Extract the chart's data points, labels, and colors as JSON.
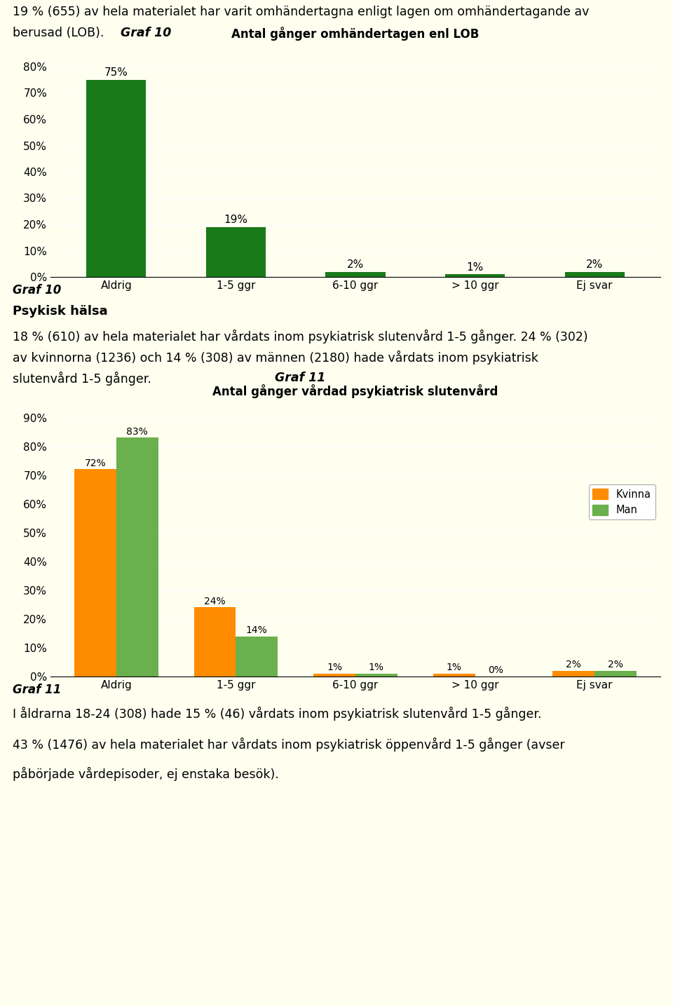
{
  "page_bg": "#fffff0",
  "chart1_title": "Antal gånger omhändertagen enl LOB",
  "chart1_categories": [
    "Aldrig",
    "1-5 ggr",
    "6-10 ggr",
    "> 10 ggr",
    "Ej svar"
  ],
  "chart1_values": [
    75,
    19,
    2,
    1,
    2
  ],
  "chart1_color": "#1a7a1a",
  "chart1_ylim": [
    0,
    88
  ],
  "chart1_yticks": [
    0,
    10,
    20,
    30,
    40,
    50,
    60,
    70,
    80
  ],
  "chart2_title": "Antal gånger vårdad psykiatrisk slutenvård",
  "chart2_categories": [
    "Aldrig",
    "1-5 ggr",
    "6-10 ggr",
    "> 10 ggr",
    "Ej svar"
  ],
  "chart2_kvinna": [
    72,
    24,
    1,
    1,
    2
  ],
  "chart2_man": [
    83,
    14,
    1,
    0,
    2
  ],
  "chart2_kvinna_color": "#ff8c00",
  "chart2_man_color": "#6ab04c",
  "chart2_ylim": [
    0,
    95
  ],
  "chart2_yticks": [
    0,
    10,
    20,
    30,
    40,
    50,
    60,
    70,
    80,
    90
  ]
}
